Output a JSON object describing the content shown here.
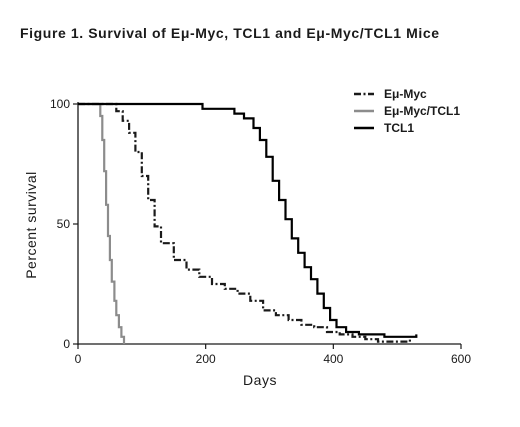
{
  "chart_data": {
    "type": "line",
    "title": "Figure 1. Survival of Eμ-Myc, TCL1 and Eμ-Myc/TCL1 Mice",
    "xlabel": "Days",
    "ylabel": "Percent survival",
    "xlim": [
      0,
      600
    ],
    "ylim": [
      0,
      100
    ],
    "x_ticks": [
      0,
      200,
      400,
      600
    ],
    "y_ticks": [
      0,
      50,
      100
    ],
    "grid": false,
    "legend_position": "top-right",
    "series": [
      {
        "name": "Eμ-Myc",
        "color": "#1a1a1a",
        "line_style": "dash-dot",
        "points": [
          [
            0,
            100
          ],
          [
            55,
            100
          ],
          [
            60,
            97
          ],
          [
            70,
            93
          ],
          [
            80,
            88
          ],
          [
            90,
            80
          ],
          [
            100,
            70
          ],
          [
            110,
            60
          ],
          [
            120,
            49
          ],
          [
            130,
            42
          ],
          [
            150,
            35
          ],
          [
            170,
            31
          ],
          [
            190,
            28
          ],
          [
            210,
            25
          ],
          [
            230,
            23
          ],
          [
            250,
            21
          ],
          [
            270,
            18
          ],
          [
            290,
            14
          ],
          [
            310,
            12
          ],
          [
            330,
            10
          ],
          [
            350,
            8
          ],
          [
            370,
            7
          ],
          [
            390,
            5
          ],
          [
            410,
            4
          ],
          [
            430,
            3
          ],
          [
            450,
            2
          ],
          [
            470,
            1
          ],
          [
            500,
            1
          ],
          [
            520,
            2
          ]
        ]
      },
      {
        "name": "Eμ-Myc/TCL1",
        "color": "#8c8c8c",
        "line_style": "solid",
        "points": [
          [
            0,
            100
          ],
          [
            30,
            100
          ],
          [
            35,
            95
          ],
          [
            38,
            85
          ],
          [
            41,
            72
          ],
          [
            44,
            58
          ],
          [
            47,
            45
          ],
          [
            50,
            35
          ],
          [
            53,
            26
          ],
          [
            57,
            18
          ],
          [
            60,
            12
          ],
          [
            64,
            7
          ],
          [
            68,
            3
          ],
          [
            72,
            0
          ]
        ]
      },
      {
        "name": "TCL1",
        "color": "#000000",
        "line_style": "solid",
        "points": [
          [
            0,
            100
          ],
          [
            190,
            100
          ],
          [
            195,
            98
          ],
          [
            240,
            98
          ],
          [
            245,
            96
          ],
          [
            260,
            94
          ],
          [
            275,
            90
          ],
          [
            285,
            85
          ],
          [
            295,
            78
          ],
          [
            305,
            68
          ],
          [
            315,
            60
          ],
          [
            325,
            52
          ],
          [
            335,
            44
          ],
          [
            345,
            38
          ],
          [
            355,
            32
          ],
          [
            365,
            27
          ],
          [
            375,
            21
          ],
          [
            385,
            15
          ],
          [
            395,
            10
          ],
          [
            405,
            7
          ],
          [
            420,
            5
          ],
          [
            440,
            4
          ],
          [
            460,
            4
          ],
          [
            480,
            3
          ],
          [
            490,
            3
          ],
          [
            500,
            3
          ],
          [
            520,
            3
          ],
          [
            530,
            4
          ]
        ]
      }
    ]
  }
}
